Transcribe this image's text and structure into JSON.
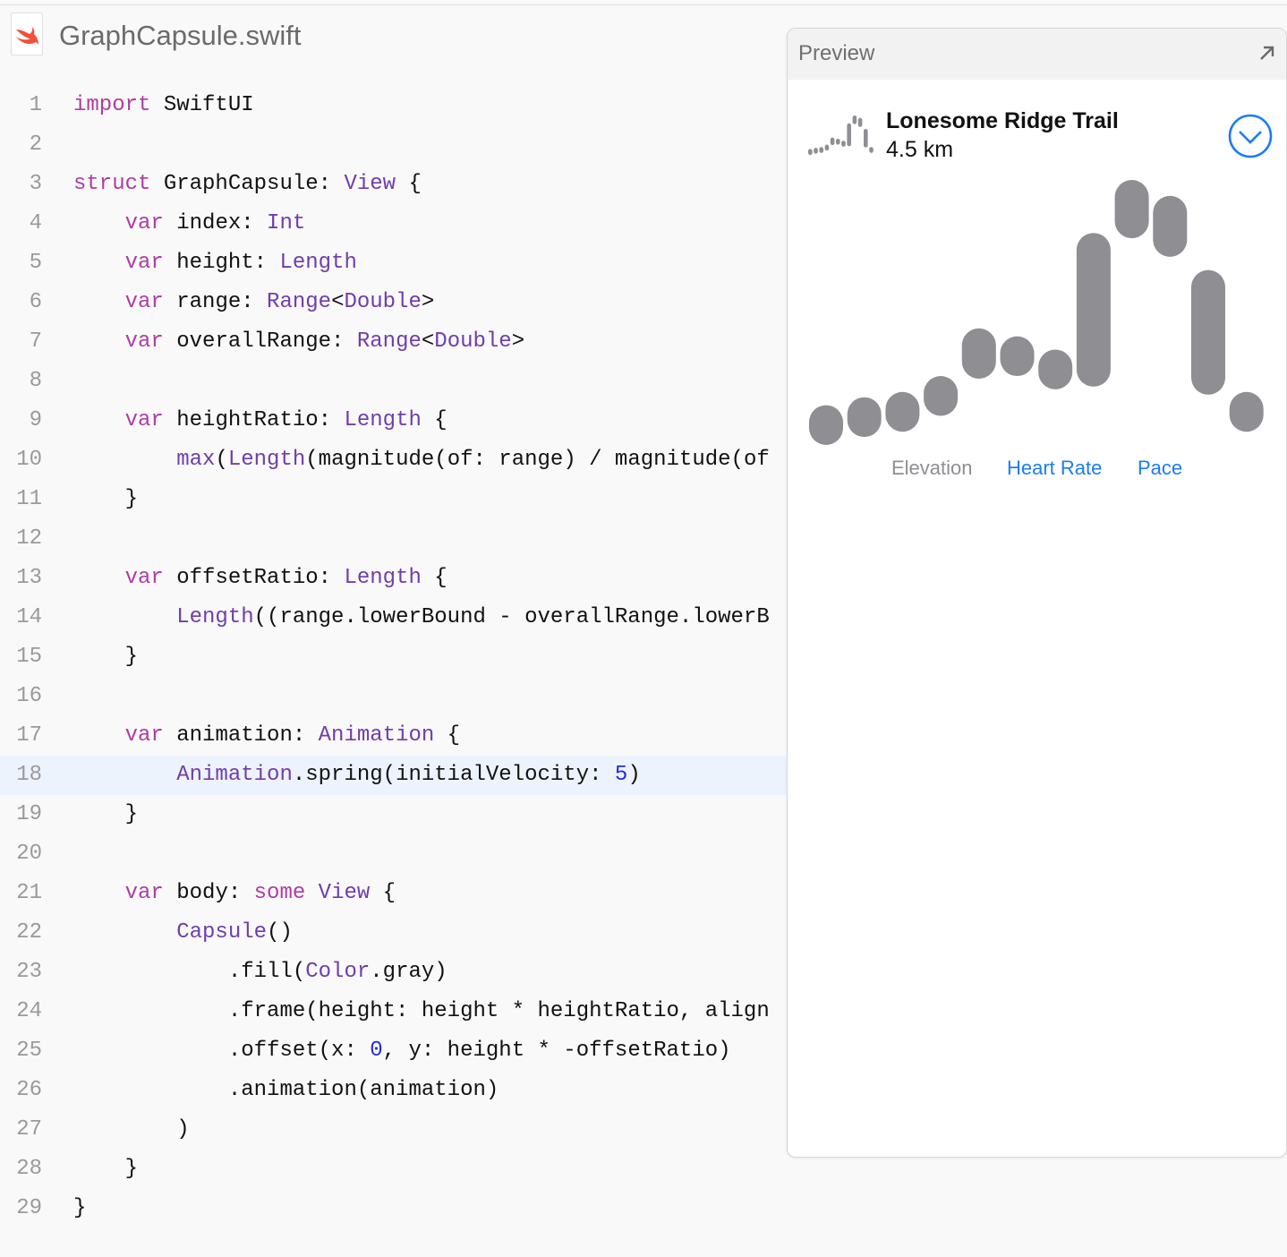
{
  "file": {
    "name": "GraphCapsule.swift",
    "icon": "swift-file-icon"
  },
  "editor": {
    "highlighted_line": 18,
    "lines": [
      [
        [
          "import",
          "k"
        ],
        [
          " SwiftUI",
          "p"
        ]
      ],
      [],
      [
        [
          "struct",
          "k"
        ],
        [
          " GraphCapsule: ",
          "p"
        ],
        [
          "View",
          "t"
        ],
        [
          " {",
          "p"
        ]
      ],
      [
        [
          "    ",
          "p"
        ],
        [
          "var",
          "k"
        ],
        [
          " index: ",
          "p"
        ],
        [
          "Int",
          "t"
        ]
      ],
      [
        [
          "    ",
          "p"
        ],
        [
          "var",
          "k"
        ],
        [
          " height: ",
          "p"
        ],
        [
          "Length",
          "t"
        ]
      ],
      [
        [
          "    ",
          "p"
        ],
        [
          "var",
          "k"
        ],
        [
          " range: ",
          "p"
        ],
        [
          "Range",
          "t"
        ],
        [
          "<",
          "p"
        ],
        [
          "Double",
          "t"
        ],
        [
          ">",
          "p"
        ]
      ],
      [
        [
          "    ",
          "p"
        ],
        [
          "var",
          "k"
        ],
        [
          " overallRange: ",
          "p"
        ],
        [
          "Range",
          "t"
        ],
        [
          "<",
          "p"
        ],
        [
          "Double",
          "t"
        ],
        [
          ">",
          "p"
        ]
      ],
      [],
      [
        [
          "    ",
          "p"
        ],
        [
          "var",
          "k"
        ],
        [
          " heightRatio: ",
          "p"
        ],
        [
          "Length",
          "t"
        ],
        [
          " {",
          "p"
        ]
      ],
      [
        [
          "        ",
          "p"
        ],
        [
          "max",
          "t"
        ],
        [
          "(",
          "p"
        ],
        [
          "Length",
          "t"
        ],
        [
          "(magnitude(of: range) / magnitude(of",
          "p"
        ]
      ],
      [
        [
          "    }",
          "p"
        ]
      ],
      [],
      [
        [
          "    ",
          "p"
        ],
        [
          "var",
          "k"
        ],
        [
          " offsetRatio: ",
          "p"
        ],
        [
          "Length",
          "t"
        ],
        [
          " {",
          "p"
        ]
      ],
      [
        [
          "        ",
          "p"
        ],
        [
          "Length",
          "t"
        ],
        [
          "((range.lowerBound - overallRange.lowerB",
          "p"
        ]
      ],
      [
        [
          "    }",
          "p"
        ]
      ],
      [],
      [
        [
          "    ",
          "p"
        ],
        [
          "var",
          "k"
        ],
        [
          " animation: ",
          "p"
        ],
        [
          "Animation",
          "t"
        ],
        [
          " {",
          "p"
        ]
      ],
      [
        [
          "        ",
          "p"
        ],
        [
          "Animation",
          "t"
        ],
        [
          ".spring(initialVelocity: ",
          "p"
        ],
        [
          "5",
          "n"
        ],
        [
          ")",
          "p"
        ]
      ],
      [
        [
          "    }",
          "p"
        ]
      ],
      [],
      [
        [
          "    ",
          "p"
        ],
        [
          "var",
          "k"
        ],
        [
          " body: ",
          "p"
        ],
        [
          "some",
          "k"
        ],
        [
          " ",
          "p"
        ],
        [
          "View",
          "t"
        ],
        [
          " {",
          "p"
        ]
      ],
      [
        [
          "        ",
          "p"
        ],
        [
          "Capsule",
          "t"
        ],
        [
          "()",
          "p"
        ]
      ],
      [
        [
          "            .fill(",
          "p"
        ],
        [
          "Color",
          "t"
        ],
        [
          ".gray)",
          "p"
        ]
      ],
      [
        [
          "            .frame(height: height * heightRatio, align",
          "p"
        ]
      ],
      [
        [
          "            .offset(x: ",
          "p"
        ],
        [
          "0",
          "n"
        ],
        [
          ", y: height * -offsetRatio)",
          "p"
        ]
      ],
      [
        [
          "            .animation(animation)",
          "p"
        ]
      ],
      [
        [
          "        )",
          "p"
        ]
      ],
      [
        [
          "    }",
          "p"
        ]
      ],
      [
        [
          "}",
          "p"
        ]
      ]
    ]
  },
  "preview": {
    "title": "Preview",
    "expand_icon": "arrow-up-right-icon",
    "trail_name": "Lonesome Ridge Trail",
    "distance": "4.5 km",
    "toggle_icon": "chevron-down-circle-icon",
    "accent": "#1a7cf5",
    "capsule_color": "#8e8e93",
    "tabs": [
      {
        "label": "Elevation",
        "selected": true
      },
      {
        "label": "Heart Rate",
        "selected": false
      },
      {
        "label": "Pace",
        "selected": false
      }
    ],
    "graph_ranges_fraction_of_overall": [
      [
        0.0,
        0.15
      ],
      [
        0.03,
        0.18
      ],
      [
        0.05,
        0.2
      ],
      [
        0.11,
        0.26
      ],
      [
        0.25,
        0.44
      ],
      [
        0.26,
        0.41
      ],
      [
        0.21,
        0.36
      ],
      [
        0.22,
        0.8
      ],
      [
        0.78,
        1.0
      ],
      [
        0.71,
        0.94
      ],
      [
        0.19,
        0.66
      ],
      [
        0.05,
        0.2
      ]
    ]
  }
}
